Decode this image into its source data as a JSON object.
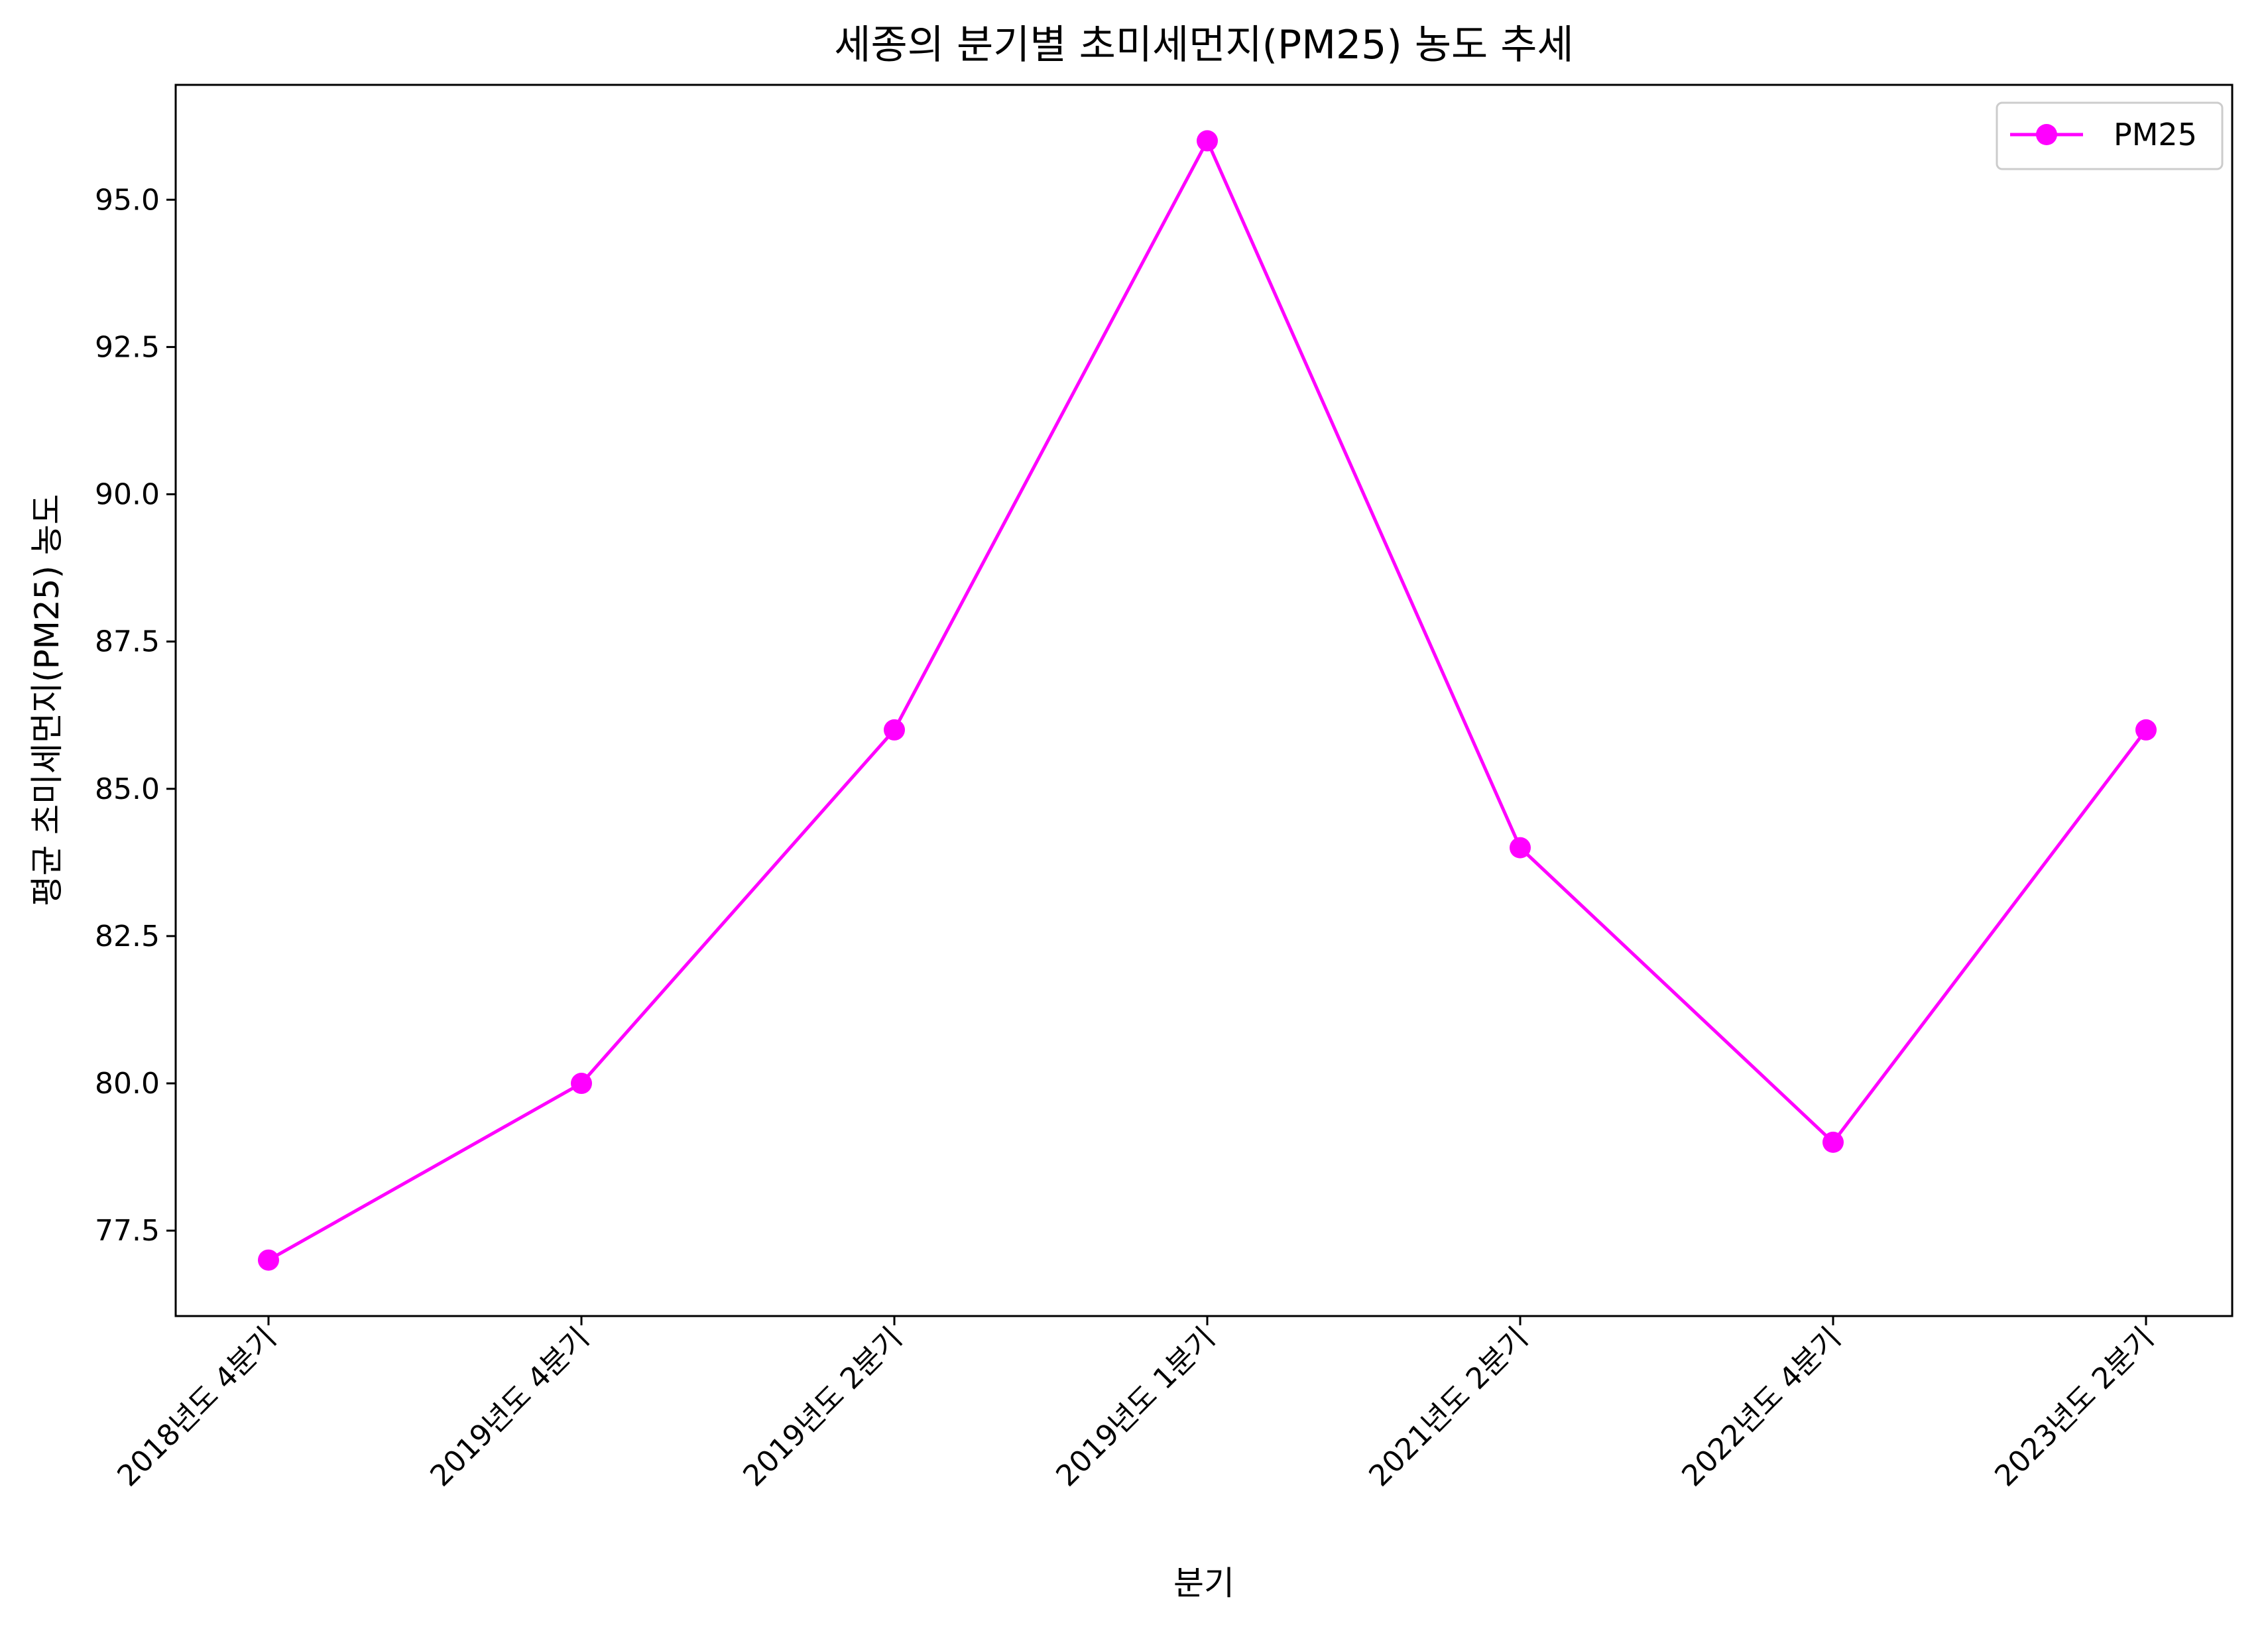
{
  "chart_data": {
    "type": "line",
    "title": "세종의 분기별 초미세먼지(PM25) 농도 추세",
    "xlabel": "분기",
    "ylabel": "평균 초미세먼지(PM25) 농도",
    "categories": [
      "2018년도 4분기",
      "2019년도 4분기",
      "2019년도 2분기",
      "2019년도 1분기",
      "2021년도 2분기",
      "2022년도 4분기",
      "2023년도 2분기"
    ],
    "series": [
      {
        "name": "PM25",
        "values": [
          77,
          80,
          86,
          96,
          84,
          79,
          86
        ],
        "color": "#ff00ff"
      }
    ],
    "ylim": [
      76.05,
      96.95
    ],
    "yticks": [
      77.5,
      80.0,
      82.5,
      85.0,
      87.5,
      90.0,
      92.5,
      95.0
    ],
    "ytick_labels": [
      "77.5",
      "80.0",
      "82.5",
      "85.0",
      "87.5",
      "90.0",
      "92.5",
      "95.0"
    ],
    "grid": false,
    "legend": "top-right"
  }
}
